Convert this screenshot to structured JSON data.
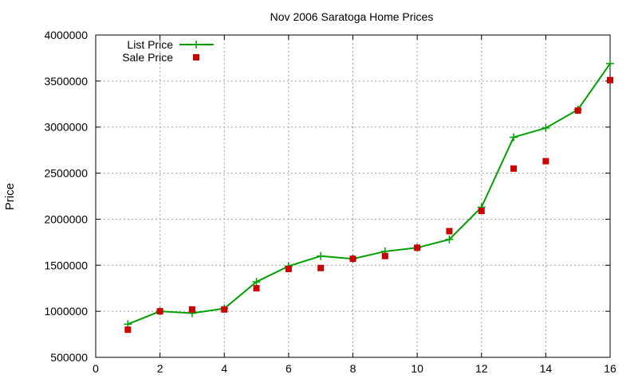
{
  "chart_data": {
    "type": "line",
    "title": "Nov 2006 Saratoga Home Prices",
    "xlabel": "",
    "ylabel": "Price",
    "xlim": [
      0,
      16
    ],
    "ylim": [
      500000,
      4000000
    ],
    "xticks": [
      0,
      2,
      4,
      6,
      8,
      10,
      12,
      14,
      16
    ],
    "yticks": [
      500000,
      1000000,
      1500000,
      2000000,
      2500000,
      3000000,
      3500000,
      4000000
    ],
    "grid": true,
    "legend_position": "top-left",
    "series": [
      {
        "name": "List Price",
        "style": "line+plus",
        "color": "#00a000",
        "x": [
          1,
          2,
          3,
          4,
          5,
          6,
          7,
          8,
          9,
          10,
          11,
          12,
          13,
          14,
          15,
          16
        ],
        "y": [
          860000,
          1000000,
          980000,
          1030000,
          1320000,
          1490000,
          1600000,
          1570000,
          1650000,
          1690000,
          1780000,
          2130000,
          2890000,
          2990000,
          3190000,
          3690000
        ]
      },
      {
        "name": "Sale Price",
        "style": "square",
        "color": "#cc0000",
        "x": [
          1,
          2,
          3,
          4,
          5,
          6,
          7,
          8,
          9,
          10,
          11,
          12,
          13,
          14,
          15,
          16
        ],
        "y": [
          800000,
          1000000,
          1020000,
          1020000,
          1250000,
          1460000,
          1470000,
          1570000,
          1600000,
          1690000,
          1870000,
          2090000,
          2550000,
          2630000,
          3180000,
          3510000
        ]
      }
    ]
  }
}
